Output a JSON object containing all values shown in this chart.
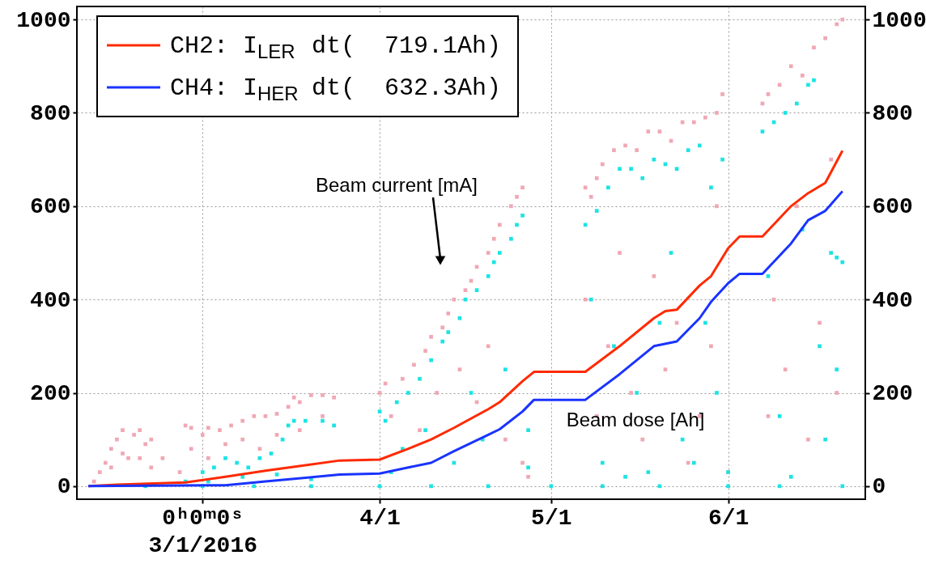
{
  "chart_data": {
    "type": "scatter",
    "legend": "top left",
    "grid": true,
    "xlim": [
      "2016-02-08",
      "2016-06-25"
    ],
    "xticks": [
      {
        "value": "2016-03-01",
        "label": "0ʰ0ᵐ0ˢ\n3/1/2016"
      },
      {
        "value": "2016-04-01",
        "label": "4/1"
      },
      {
        "value": "2016-05-01",
        "label": "5/1"
      },
      {
        "value": "2016-06-01",
        "label": "6/1"
      }
    ],
    "ylim": [
      -28,
      1028
    ],
    "yticks": [
      0,
      200,
      400,
      600,
      800,
      1000
    ],
    "y2lim": [
      -28,
      1028
    ],
    "y2ticks": [
      0,
      200,
      400,
      600,
      800,
      1000
    ],
    "annotations": [
      "Beam current [mA]",
      "Beam dose [Ah]"
    ],
    "series": [
      {
        "marker": "square",
        "color": "#f0a8b4",
        "x": [
          "2016-02-11",
          "2016-02-12",
          "2016-02-13",
          "2016-02-14",
          "2016-02-14",
          "2016-02-15",
          "2016-02-16",
          "2016-02-16",
          "2016-02-17",
          "2016-02-18",
          "2016-02-19",
          "2016-02-19",
          "2016-02-20",
          "2016-02-21",
          "2016-02-21",
          "2016-02-23",
          "2016-02-26",
          "2016-02-27",
          "2016-02-28",
          "2016-02-28",
          "2016-03-01",
          "2016-03-02",
          "2016-03-02",
          "2016-03-04",
          "2016-03-05",
          "2016-03-06",
          "2016-03-08",
          "2016-03-08",
          "2016-03-10",
          "2016-03-11",
          "2016-03-12",
          "2016-03-14",
          "2016-03-14",
          "2016-03-16",
          "2016-03-17",
          "2016-03-18",
          "2016-03-18",
          "2016-03-20",
          "2016-03-22",
          "2016-03-22",
          "2016-03-24",
          "2016-04-01",
          "2016-04-02",
          "2016-04-03",
          "2016-04-05",
          "2016-04-07",
          "2016-04-08",
          "2016-04-09",
          "2016-04-10",
          "2016-04-11",
          "2016-04-12",
          "2016-04-13",
          "2016-04-14",
          "2016-04-15",
          "2016-04-16",
          "2016-04-17",
          "2016-04-18",
          "2016-04-18",
          "2016-04-20",
          "2016-04-20",
          "2016-04-21",
          "2016-04-22",
          "2016-04-23",
          "2016-04-24",
          "2016-04-25",
          "2016-04-26",
          "2016-04-26",
          "2016-04-27",
          "2016-05-07",
          "2016-05-07",
          "2016-05-08",
          "2016-05-09",
          "2016-05-09",
          "2016-05-10",
          "2016-05-11",
          "2016-05-12",
          "2016-05-13",
          "2016-05-14",
          "2016-05-15",
          "2016-05-16",
          "2016-05-17",
          "2016-05-18",
          "2016-05-19",
          "2016-05-20",
          "2016-05-21",
          "2016-05-22",
          "2016-05-23",
          "2016-05-24",
          "2016-05-25",
          "2016-05-26",
          "2016-05-27",
          "2016-05-28",
          "2016-05-29",
          "2016-05-30",
          "2016-05-30",
          "2016-05-31",
          "2016-06-01",
          "2016-06-07",
          "2016-06-08",
          "2016-06-08",
          "2016-06-09",
          "2016-06-10",
          "2016-06-11",
          "2016-06-12",
          "2016-06-13",
          "2016-06-14",
          "2016-06-15",
          "2016-06-16",
          "2016-06-17",
          "2016-06-18",
          "2016-06-19",
          "2016-06-20",
          "2016-06-20",
          "2016-06-21"
        ],
        "values": [
          10,
          30,
          50,
          80,
          40,
          100,
          120,
          70,
          60,
          110,
          120,
          60,
          90,
          100,
          40,
          60,
          30,
          130,
          125,
          80,
          110,
          125,
          60,
          120,
          90,
          130,
          140,
          100,
          150,
          80,
          150,
          155,
          110,
          170,
          190,
          180,
          120,
          195,
          195,
          150,
          190,
          200,
          220,
          150,
          230,
          260,
          120,
          290,
          320,
          200,
          340,
          370,
          400,
          250,
          420,
          440,
          470,
          180,
          500,
          300,
          530,
          560,
          100,
          600,
          620,
          640,
          50,
          20,
          640,
          400,
          620,
          660,
          150,
          690,
          300,
          720,
          500,
          730,
          200,
          720,
          100,
          760,
          450,
          760,
          250,
          740,
          350,
          780,
          50,
          780,
          150,
          790,
          300,
          800,
          600,
          840,
          30,
          820,
          840,
          150,
          400,
          860,
          250,
          900,
          600,
          880,
          100,
          940,
          350,
          960,
          700,
          990,
          200,
          1000
        ]
      },
      {
        "marker": "square",
        "color": "#1ee3e3",
        "x": [
          "2016-02-20",
          "2016-02-27",
          "2016-03-01",
          "2016-03-01",
          "2016-03-02",
          "2016-03-03",
          "2016-03-05",
          "2016-03-07",
          "2016-03-08",
          "2016-03-09",
          "2016-03-10",
          "2016-03-11",
          "2016-03-13",
          "2016-03-14",
          "2016-03-15",
          "2016-03-16",
          "2016-03-17",
          "2016-03-19",
          "2016-03-20",
          "2016-03-20",
          "2016-03-22",
          "2016-03-24",
          "2016-04-01",
          "2016-04-01",
          "2016-04-02",
          "2016-04-03",
          "2016-04-04",
          "2016-04-05",
          "2016-04-06",
          "2016-04-08",
          "2016-04-09",
          "2016-04-10",
          "2016-04-10",
          "2016-04-12",
          "2016-04-13",
          "2016-04-14",
          "2016-04-15",
          "2016-04-16",
          "2016-04-17",
          "2016-04-18",
          "2016-04-19",
          "2016-04-20",
          "2016-04-20",
          "2016-04-21",
          "2016-04-22",
          "2016-04-23",
          "2016-04-24",
          "2016-04-25",
          "2016-04-26",
          "2016-04-27",
          "2016-04-27",
          "2016-05-01",
          "2016-05-07",
          "2016-05-08",
          "2016-05-09",
          "2016-05-10",
          "2016-05-10",
          "2016-05-11",
          "2016-05-12",
          "2016-05-13",
          "2016-05-14",
          "2016-05-15",
          "2016-05-16",
          "2016-05-17",
          "2016-05-18",
          "2016-05-19",
          "2016-05-20",
          "2016-05-20",
          "2016-05-21",
          "2016-05-22",
          "2016-05-23",
          "2016-05-24",
          "2016-05-25",
          "2016-05-26",
          "2016-05-27",
          "2016-05-28",
          "2016-05-29",
          "2016-05-30",
          "2016-05-31",
          "2016-06-01",
          "2016-06-01",
          "2016-06-07",
          "2016-06-08",
          "2016-06-09",
          "2016-06-10",
          "2016-06-10",
          "2016-06-11",
          "2016-06-12",
          "2016-06-13",
          "2016-06-14",
          "2016-06-15",
          "2016-06-16",
          "2016-06-17",
          "2016-06-18",
          "2016-06-19",
          "2016-06-20",
          "2016-06-20",
          "2016-06-21",
          "2016-06-21"
        ],
        "values": [
          0,
          10,
          30,
          0,
          10,
          40,
          60,
          50,
          20,
          40,
          0,
          60,
          70,
          25,
          100,
          130,
          140,
          140,
          15,
          0,
          140,
          130,
          160,
          0,
          140,
          30,
          180,
          80,
          200,
          230,
          120,
          270,
          0,
          310,
          330,
          50,
          360,
          400,
          200,
          420,
          100,
          450,
          0,
          480,
          500,
          250,
          530,
          560,
          580,
          120,
          40,
          0,
          560,
          400,
          590,
          50,
          0,
          640,
          300,
          680,
          20,
          680,
          200,
          660,
          30,
          700,
          350,
          0,
          690,
          500,
          680,
          100,
          720,
          50,
          730,
          350,
          640,
          200,
          700,
          30,
          0,
          760,
          450,
          780,
          150,
          0,
          800,
          20,
          820,
          550,
          860,
          870,
          300,
          100,
          500,
          490,
          250,
          480,
          0
        ]
      },
      {
        "type": "line",
        "name": "CH2: I$_{LER}$ dt(  719.1Ah)",
        "color": "#ff2a00",
        "x": [
          "2016-02-10",
          "2016-02-15",
          "2016-02-27",
          "2016-03-05",
          "2016-03-12",
          "2016-03-19",
          "2016-03-25",
          "2016-04-01",
          "2016-04-06",
          "2016-04-10",
          "2016-04-14",
          "2016-04-20",
          "2016-04-22",
          "2016-04-26",
          "2016-04-28",
          "2016-05-07",
          "2016-05-13",
          "2016-05-19",
          "2016-05-21",
          "2016-05-23",
          "2016-05-27",
          "2016-05-29",
          "2016-06-01",
          "2016-06-03",
          "2016-06-07",
          "2016-06-12",
          "2016-06-15",
          "2016-06-18",
          "2016-06-21"
        ],
        "values": [
          0,
          3,
          8,
          20,
          33,
          45,
          55,
          57,
          80,
          100,
          125,
          165,
          180,
          225,
          245,
          245,
          300,
          360,
          375,
          378,
          430,
          450,
          510,
          535,
          535,
          600,
          628,
          650,
          719
        ]
      },
      {
        "type": "line",
        "name": "CH4: I$_{HER}$ dt(  632.3Ah)",
        "color": "#1a33ff",
        "x": [
          "2016-02-10",
          "2016-03-05",
          "2016-03-12",
          "2016-03-19",
          "2016-03-25",
          "2016-04-01",
          "2016-04-06",
          "2016-04-10",
          "2016-04-14",
          "2016-04-20",
          "2016-04-22",
          "2016-04-26",
          "2016-04-28",
          "2016-05-07",
          "2016-05-13",
          "2016-05-19",
          "2016-05-23",
          "2016-05-27",
          "2016-05-29",
          "2016-06-01",
          "2016-06-03",
          "2016-06-07",
          "2016-06-12",
          "2016-06-15",
          "2016-06-18",
          "2016-06-21"
        ],
        "values": [
          0,
          2,
          10,
          18,
          25,
          27,
          40,
          50,
          75,
          110,
          122,
          160,
          185,
          185,
          240,
          300,
          310,
          360,
          395,
          435,
          455,
          455,
          520,
          570,
          590,
          632
        ]
      }
    ]
  }
}
